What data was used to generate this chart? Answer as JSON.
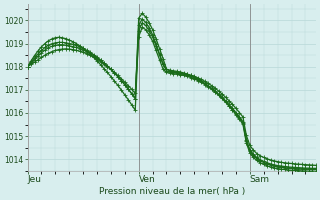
{
  "background_color": "#d8eeee",
  "grid_color": "#b8d8d8",
  "line_color": "#1a6b1a",
  "ylabel_text": "Pression niveau de la mer( hPa )",
  "ylim": [
    1013.5,
    1020.7
  ],
  "yticks": [
    1014,
    1015,
    1016,
    1017,
    1018,
    1019,
    1020
  ],
  "day_labels": [
    "Jeu",
    "Ven",
    "Sam"
  ],
  "day_positions": [
    0,
    32,
    64
  ],
  "total_hours": 84,
  "series": [
    [
      1018.0,
      1018.15,
      1018.3,
      1018.45,
      1018.6,
      1018.72,
      1018.82,
      1018.88,
      1018.92,
      1018.95,
      1018.95,
      1018.93,
      1018.9,
      1018.87,
      1018.83,
      1018.78,
      1018.72,
      1018.65,
      1018.57,
      1018.48,
      1018.38,
      1018.27,
      1018.15,
      1018.02,
      1017.88,
      1017.73,
      1017.57,
      1017.4,
      1017.22,
      1017.03,
      1016.83,
      1016.62,
      1020.1,
      1020.3,
      1020.15,
      1019.9,
      1019.6,
      1019.2,
      1018.78,
      1018.35,
      1017.9,
      1017.82,
      1017.78,
      1017.75,
      1017.73,
      1017.7,
      1017.67,
      1017.63,
      1017.58,
      1017.52,
      1017.45,
      1017.37,
      1017.28,
      1017.18,
      1017.07,
      1016.95,
      1016.82,
      1016.68,
      1016.53,
      1016.37,
      1016.2,
      1016.02,
      1015.83,
      1015.03,
      1014.6,
      1014.4,
      1014.25,
      1014.15,
      1014.08,
      1014.02,
      1013.97,
      1013.93,
      1013.9,
      1013.87,
      1013.85,
      1013.83,
      1013.82,
      1013.8,
      1013.79,
      1013.78,
      1013.77,
      1013.76,
      1013.75,
      1013.74
    ],
    [
      1018.0,
      1018.2,
      1018.38,
      1018.55,
      1018.7,
      1018.83,
      1018.93,
      1018.99,
      1019.03,
      1019.05,
      1019.05,
      1019.03,
      1019.0,
      1018.97,
      1018.92,
      1018.86,
      1018.79,
      1018.71,
      1018.62,
      1018.52,
      1018.41,
      1018.29,
      1018.16,
      1018.03,
      1017.88,
      1017.73,
      1017.57,
      1017.4,
      1017.22,
      1017.03,
      1016.83,
      1016.62,
      1019.8,
      1020.05,
      1019.92,
      1019.68,
      1019.38,
      1018.97,
      1018.55,
      1018.12,
      1017.82,
      1017.78,
      1017.75,
      1017.73,
      1017.7,
      1017.67,
      1017.63,
      1017.58,
      1017.52,
      1017.45,
      1017.37,
      1017.28,
      1017.18,
      1017.07,
      1016.95,
      1016.82,
      1016.68,
      1016.53,
      1016.37,
      1016.2,
      1016.02,
      1015.83,
      1015.63,
      1014.83,
      1014.42,
      1014.22,
      1014.08,
      1013.98,
      1013.91,
      1013.85,
      1013.8,
      1013.76,
      1013.73,
      1013.71,
      1013.69,
      1013.67,
      1013.66,
      1013.65,
      1013.64,
      1013.63,
      1013.62,
      1013.62,
      1013.61,
      1013.61
    ],
    [
      1018.0,
      1018.1,
      1018.2,
      1018.3,
      1018.4,
      1018.5,
      1018.58,
      1018.65,
      1018.7,
      1018.74,
      1018.76,
      1018.77,
      1018.76,
      1018.74,
      1018.71,
      1018.67,
      1018.62,
      1018.56,
      1018.49,
      1018.41,
      1018.32,
      1018.22,
      1018.11,
      1018.0,
      1017.88,
      1017.75,
      1017.62,
      1017.48,
      1017.33,
      1017.18,
      1017.02,
      1016.85,
      1019.3,
      1019.7,
      1019.6,
      1019.38,
      1019.1,
      1018.7,
      1018.3,
      1017.9,
      1017.75,
      1017.72,
      1017.7,
      1017.68,
      1017.65,
      1017.62,
      1017.58,
      1017.53,
      1017.47,
      1017.4,
      1017.32,
      1017.23,
      1017.13,
      1017.02,
      1016.9,
      1016.77,
      1016.63,
      1016.48,
      1016.32,
      1016.15,
      1015.97,
      1015.78,
      1015.58,
      1014.78,
      1014.37,
      1014.17,
      1014.03,
      1013.93,
      1013.86,
      1013.8,
      1013.75,
      1013.71,
      1013.68,
      1013.66,
      1013.64,
      1013.62,
      1013.61,
      1013.6,
      1013.59,
      1013.58,
      1013.57,
      1013.57,
      1013.56,
      1013.56
    ],
    [
      1018.0,
      1018.25,
      1018.48,
      1018.68,
      1018.86,
      1019.0,
      1019.12,
      1019.2,
      1019.25,
      1019.27,
      1019.25,
      1019.21,
      1019.15,
      1019.08,
      1019.0,
      1018.9,
      1018.79,
      1018.67,
      1018.54,
      1018.4,
      1018.25,
      1018.09,
      1017.92,
      1017.75,
      1017.57,
      1017.38,
      1017.19,
      1016.99,
      1016.78,
      1016.57,
      1016.35,
      1016.12,
      1019.55,
      1019.9,
      1019.78,
      1019.55,
      1019.28,
      1018.9,
      1018.5,
      1018.1,
      1017.88,
      1017.85,
      1017.82,
      1017.8,
      1017.77,
      1017.73,
      1017.68,
      1017.62,
      1017.55,
      1017.47,
      1017.38,
      1017.28,
      1017.17,
      1017.05,
      1016.92,
      1016.78,
      1016.63,
      1016.47,
      1016.3,
      1016.12,
      1015.93,
      1015.73,
      1015.52,
      1014.7,
      1014.28,
      1014.08,
      1013.95,
      1013.85,
      1013.78,
      1013.72,
      1013.67,
      1013.63,
      1013.6,
      1013.58,
      1013.56,
      1013.54,
      1013.53,
      1013.52,
      1013.51,
      1013.5,
      1013.5,
      1013.49,
      1013.49,
      1013.48
    ]
  ]
}
